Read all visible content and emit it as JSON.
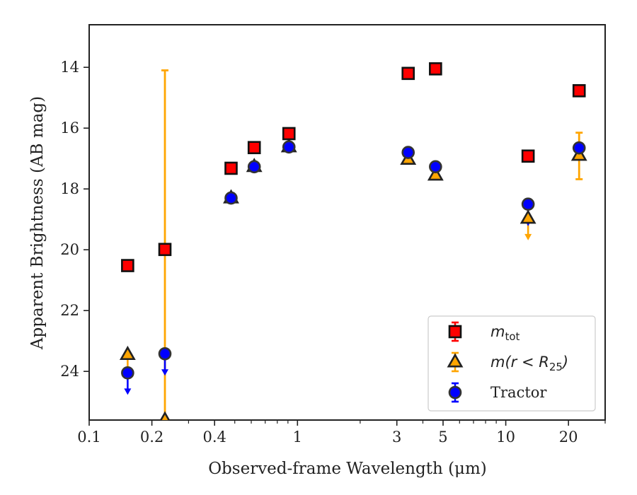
{
  "chart_data": {
    "type": "scatter",
    "xlabel": "Observed-frame Wavelength (μm)",
    "ylabel": "Apparent Brightness (AB mag)",
    "xscale": "log",
    "xlim": [
      0.1,
      30
    ],
    "ylim": [
      25.6,
      12.6
    ],
    "y_inverted": true,
    "grid": false,
    "legend_position": "bottom-right",
    "xticks": [
      {
        "value": 0.1,
        "label": "0.1"
      },
      {
        "value": 0.2,
        "label": "0.2"
      },
      {
        "value": 0.4,
        "label": "0.4"
      },
      {
        "value": 1,
        "label": "1"
      },
      {
        "value": 3,
        "label": "3"
      },
      {
        "value": 5,
        "label": "5"
      },
      {
        "value": 10,
        "label": "10"
      },
      {
        "value": 20,
        "label": "20"
      }
    ],
    "yticks": [
      {
        "value": 14,
        "label": "14"
      },
      {
        "value": 16,
        "label": "16"
      },
      {
        "value": 18,
        "label": "18"
      },
      {
        "value": 20,
        "label": "20"
      },
      {
        "value": 22,
        "label": "22"
      },
      {
        "value": 24,
        "label": "24"
      }
    ],
    "series": [
      {
        "name": "m_tot",
        "legend_main": "m",
        "legend_sub": "tot",
        "marker": "square",
        "color": "#ff0000",
        "errcolor": "#ff0000",
        "points": [
          {
            "x": 0.153,
            "y": 20.52
          },
          {
            "x": 0.231,
            "y": 19.99
          },
          {
            "x": 0.48,
            "y": 17.32
          },
          {
            "x": 0.62,
            "y": 16.64
          },
          {
            "x": 0.91,
            "y": 16.18
          },
          {
            "x": 3.4,
            "y": 14.2
          },
          {
            "x": 4.6,
            "y": 14.05
          },
          {
            "x": 12.8,
            "y": 16.92
          },
          {
            "x": 22.5,
            "y": 14.77
          }
        ]
      },
      {
        "name": "m(r < R25)",
        "legend_main": "m(r < R",
        "legend_sub": "25",
        "legend_tail": ")",
        "marker": "triangle",
        "color": "#ffa500",
        "errcolor": "#ffa500",
        "points": [
          {
            "x": 0.153,
            "y": 23.45,
            "err_lo": 0.0,
            "err_hi": 0.0,
            "upper_limit": true
          },
          {
            "x": 0.231,
            "y": 25.6,
            "err_lo": 11.5,
            "err_hi": 0.0
          },
          {
            "x": 0.48,
            "y": 18.3
          },
          {
            "x": 0.62,
            "y": 17.27
          },
          {
            "x": 0.91,
            "y": 16.62
          },
          {
            "x": 3.4,
            "y": 17.03
          },
          {
            "x": 4.6,
            "y": 17.55
          },
          {
            "x": 12.8,
            "y": 18.97,
            "upper_limit": true
          },
          {
            "x": 22.5,
            "y": 16.9,
            "err_lo": 0.75,
            "err_hi": 0.78
          }
        ]
      },
      {
        "name": "Tractor",
        "legend_main": "Tractor",
        "marker": "circle",
        "color": "#0000ff",
        "errcolor": "#0000ff",
        "points": [
          {
            "x": 0.153,
            "y": 24.05,
            "upper_limit": true
          },
          {
            "x": 0.231,
            "y": 23.42,
            "upper_limit": true
          },
          {
            "x": 0.48,
            "y": 18.3
          },
          {
            "x": 0.62,
            "y": 17.27
          },
          {
            "x": 0.91,
            "y": 16.62
          },
          {
            "x": 3.4,
            "y": 16.8
          },
          {
            "x": 4.6,
            "y": 17.27
          },
          {
            "x": 12.8,
            "y": 18.5,
            "upper_limit": true
          },
          {
            "x": 22.5,
            "y": 16.65
          }
        ]
      }
    ]
  }
}
